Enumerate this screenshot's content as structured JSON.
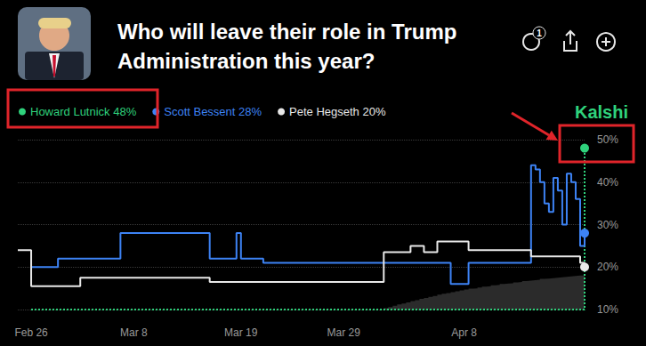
{
  "chart_data": {
    "type": "line",
    "title": "Who will leave their role in Trump Administration this year?",
    "watermark": "Kalshi",
    "badge": "1",
    "categories": [
      null,
      null,
      null,
      "Feb 26",
      null,
      null,
      null,
      null,
      null,
      null,
      null,
      null,
      null,
      null,
      null,
      null,
      null,
      null,
      null,
      null,
      null,
      null,
      null,
      null,
      null,
      null,
      "Mar 8",
      null,
      null,
      null,
      null,
      null,
      null,
      null,
      null,
      null,
      null,
      null,
      null,
      null,
      null,
      null,
      null,
      null,
      null,
      null,
      null,
      null,
      null,
      null,
      "Mar 19",
      null,
      null,
      null,
      null,
      null,
      null,
      null,
      null,
      null,
      null,
      null,
      null,
      null,
      null,
      null,
      null,
      null,
      null,
      null,
      null,
      null,
      null,
      "Mar 29",
      null,
      null,
      null,
      null,
      null,
      null,
      null,
      null,
      null,
      null,
      null,
      null,
      null,
      null,
      null,
      null,
      null,
      null,
      null,
      null,
      null,
      null,
      null,
      null,
      null,
      null,
      "Apr 8",
      null,
      null,
      null,
      null,
      null,
      null,
      null,
      null,
      null,
      null,
      null,
      null,
      null,
      null,
      null,
      null,
      null,
      null,
      null,
      null,
      null,
      null,
      null,
      null,
      null,
      null,
      null
    ],
    "series": [
      {
        "name": "Howard Lutnick 48%",
        "color": "#2fd27c",
        "line_style": "dotted",
        "values": [
          null,
          null,
          null,
          10,
          10,
          10,
          10,
          10,
          10,
          10,
          10,
          10,
          10,
          10,
          10,
          10,
          10,
          10,
          10,
          10,
          10,
          10,
          10,
          10,
          10,
          10,
          10,
          10,
          10,
          10,
          10,
          10,
          10,
          10,
          10,
          10,
          10,
          10,
          10,
          10,
          10,
          10,
          10,
          10,
          10,
          10,
          10,
          10,
          10,
          10,
          10,
          10,
          10,
          10,
          10,
          10,
          10,
          10,
          10,
          10,
          10,
          10,
          10,
          10,
          10,
          10,
          10,
          10,
          10,
          10,
          10,
          10,
          10,
          10,
          10,
          10,
          10,
          10,
          10,
          10,
          10,
          10,
          10,
          10,
          10,
          10,
          10,
          10,
          10,
          10,
          10,
          10,
          10,
          10,
          10,
          10,
          10,
          10,
          10,
          10,
          10,
          10,
          10,
          10,
          10,
          10,
          10,
          10,
          10,
          10,
          10,
          10,
          10,
          10,
          10,
          10,
          10,
          10,
          10,
          10,
          10,
          10,
          10,
          10,
          10,
          10,
          10,
          48
        ]
      },
      {
        "name": "Scott Bessent 28%",
        "color": "#3d83f5",
        "line_style": "solid",
        "values": [
          null,
          null,
          null,
          20,
          20,
          20,
          20,
          20,
          20,
          22,
          22,
          22,
          22,
          22,
          22,
          22,
          22,
          22,
          22,
          22,
          22,
          22,
          22,
          28,
          28,
          28,
          28,
          28,
          28,
          28,
          28,
          28,
          28,
          28,
          28,
          28,
          28,
          28,
          28,
          28,
          28,
          28,
          28,
          22,
          22,
          22,
          22,
          22,
          22,
          28,
          22,
          22,
          22,
          22,
          22,
          21,
          21,
          21,
          21,
          21,
          21,
          21,
          21,
          21,
          21,
          21,
          21,
          21,
          21,
          21,
          21,
          21,
          21,
          21,
          21,
          21,
          21,
          21,
          21,
          21,
          21,
          21,
          21,
          21,
          21,
          21,
          21,
          21,
          21,
          21,
          21,
          21,
          21,
          21,
          21,
          21,
          21,
          16,
          16,
          16,
          16,
          21,
          21,
          21,
          21,
          21,
          21,
          21,
          21,
          21,
          21,
          21,
          21,
          21,
          21,
          44,
          43,
          40,
          35,
          33,
          41,
          38,
          30,
          42,
          40,
          36,
          25,
          28
        ]
      },
      {
        "name": "Pete Hegseth 20%",
        "color": "#e8e8e8",
        "line_style": "solid",
        "values": [
          24,
          24,
          24,
          15.5,
          15.5,
          15.5,
          15.5,
          15.5,
          15.5,
          15.5,
          15.5,
          15.5,
          15.5,
          15.5,
          17.5,
          17.5,
          17.5,
          17.5,
          17.5,
          17.5,
          17.5,
          17.5,
          17.5,
          17.5,
          17.5,
          17.5,
          17.5,
          17.5,
          17.5,
          17.5,
          17.5,
          17.5,
          17.5,
          17.5,
          17.5,
          17.5,
          17.5,
          17.5,
          17.5,
          17.5,
          17.5,
          17.5,
          17.5,
          16.5,
          16.5,
          16.5,
          16.5,
          16.5,
          16.5,
          16.5,
          16.5,
          16.5,
          16.5,
          16.5,
          16.5,
          16.5,
          16.5,
          16.5,
          16.5,
          16.5,
          16.5,
          16.5,
          16.5,
          16.5,
          16.5,
          16.5,
          16.5,
          16.5,
          16.5,
          16.5,
          16.5,
          16.5,
          16.5,
          16.5,
          16.5,
          16.5,
          16.5,
          16.5,
          16.5,
          16.5,
          16.5,
          16.5,
          23.5,
          23.5,
          23.5,
          23.5,
          23.5,
          23.5,
          25,
          25,
          25,
          23.5,
          23.5,
          23.5,
          26,
          26,
          26,
          26,
          26,
          26,
          26,
          24,
          24,
          24,
          24,
          24,
          24,
          24,
          24,
          24,
          24,
          24,
          24,
          24,
          24,
          22.5,
          22.5,
          22.5,
          22.5,
          22.5,
          22.5,
          22.5,
          22.5,
          22.5,
          22.5,
          22.5,
          21,
          20
        ]
      }
    ],
    "volume": {
      "color": "#2b2b2b",
      "values": [
        null,
        null,
        null,
        null,
        null,
        null,
        null,
        null,
        null,
        null,
        null,
        null,
        null,
        null,
        null,
        null,
        null,
        null,
        null,
        null,
        null,
        null,
        null,
        null,
        null,
        null,
        null,
        null,
        null,
        null,
        null,
        null,
        null,
        null,
        null,
        null,
        null,
        null,
        null,
        null,
        null,
        null,
        null,
        null,
        null,
        null,
        null,
        null,
        null,
        null,
        null,
        null,
        null,
        null,
        null,
        null,
        null,
        null,
        null,
        null,
        null,
        null,
        null,
        null,
        null,
        null,
        null,
        null,
        null,
        null,
        null,
        null,
        null,
        null,
        null,
        null,
        null,
        null,
        null,
        null,
        null,
        null,
        10.3,
        10.6,
        10.9,
        11.2,
        11.4,
        11.7,
        12,
        12.2,
        12.5,
        12.7,
        13,
        13.2,
        13.5,
        13.7,
        13.9,
        14.1,
        14.3,
        14.5,
        14.7,
        14.9,
        15,
        15.2,
        15.4,
        15.5,
        15.7,
        15.8,
        16,
        16.1,
        16.2,
        16.4,
        16.5,
        16.7,
        16.8,
        16.9,
        17,
        17.2,
        17.3,
        17.4,
        17.5,
        17.6,
        17.7,
        17.8,
        17.9,
        18,
        18,
        18
      ]
    },
    "ylim": [
      10,
      50
    ],
    "yticks": [
      {
        "value": 10,
        "label": "10%"
      },
      {
        "value": 20,
        "label": "20%"
      },
      {
        "value": 30,
        "label": "30%"
      },
      {
        "value": 40,
        "label": "40%"
      },
      {
        "value": 50,
        "label": "50%"
      }
    ],
    "grid": true,
    "legend": "top-left"
  }
}
